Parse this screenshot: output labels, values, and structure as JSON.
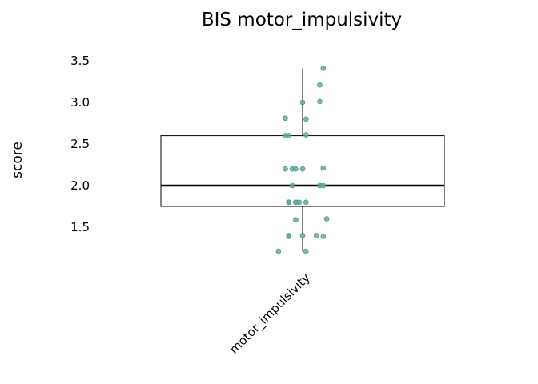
{
  "chart_data": {
    "type": "boxplot",
    "title": "BIS motor_impulsivity",
    "ylabel": "score",
    "xlabel": "",
    "categories": [
      "motor_impulsivity"
    ],
    "yticks": [
      1.5,
      2.0,
      2.5,
      3.0,
      3.5
    ],
    "ytick_labels": [
      "1.5",
      "2.0",
      "2.5",
      "3.0",
      "3.5"
    ],
    "ylim": [
      1.08,
      3.56
    ],
    "grid": false,
    "legend": "none",
    "colors": {
      "points": "#5fae9f",
      "box": "#000000"
    },
    "box": {
      "min": 1.21,
      "q1": 1.75,
      "median": 2.0,
      "q3": 2.6,
      "max": 3.41
    },
    "points": [
      {
        "x": 0.06,
        "y": 3.41
      },
      {
        "x": 0.01,
        "y": 1.21
      },
      {
        "x": 0.0,
        "y": 3.0
      },
      {
        "x": 0.01,
        "y": 2.8
      },
      {
        "x": 0.05,
        "y": 3.01
      },
      {
        "x": 0.05,
        "y": 3.21
      },
      {
        "x": -0.05,
        "y": 2.81
      },
      {
        "x": -0.05,
        "y": 2.6
      },
      {
        "x": -0.04,
        "y": 2.6
      },
      {
        "x": 0.01,
        "y": 2.61
      },
      {
        "x": -0.05,
        "y": 2.2
      },
      {
        "x": -0.03,
        "y": 2.2
      },
      {
        "x": -0.02,
        "y": 2.2
      },
      {
        "x": 0.0,
        "y": 2.2
      },
      {
        "x": 0.06,
        "y": 2.21
      },
      {
        "x": -0.03,
        "y": 2.0
      },
      {
        "x": 0.05,
        "y": 2.0
      },
      {
        "x": 0.06,
        "y": 2.0
      },
      {
        "x": -0.04,
        "y": 1.8
      },
      {
        "x": -0.04,
        "y": 1.8
      },
      {
        "x": -0.04,
        "y": 1.8
      },
      {
        "x": -0.01,
        "y": 1.8
      },
      {
        "x": -0.02,
        "y": 1.8
      },
      {
        "x": -0.02,
        "y": 1.8
      },
      {
        "x": 0.01,
        "y": 1.8
      },
      {
        "x": -0.02,
        "y": 1.59
      },
      {
        "x": 0.07,
        "y": 1.6
      },
      {
        "x": -0.04,
        "y": 1.39
      },
      {
        "x": -0.04,
        "y": 1.4
      },
      {
        "x": 0.0,
        "y": 1.4
      },
      {
        "x": 0.04,
        "y": 1.4
      },
      {
        "x": 0.06,
        "y": 1.39
      },
      {
        "x": -0.07,
        "y": 1.21
      }
    ]
  }
}
